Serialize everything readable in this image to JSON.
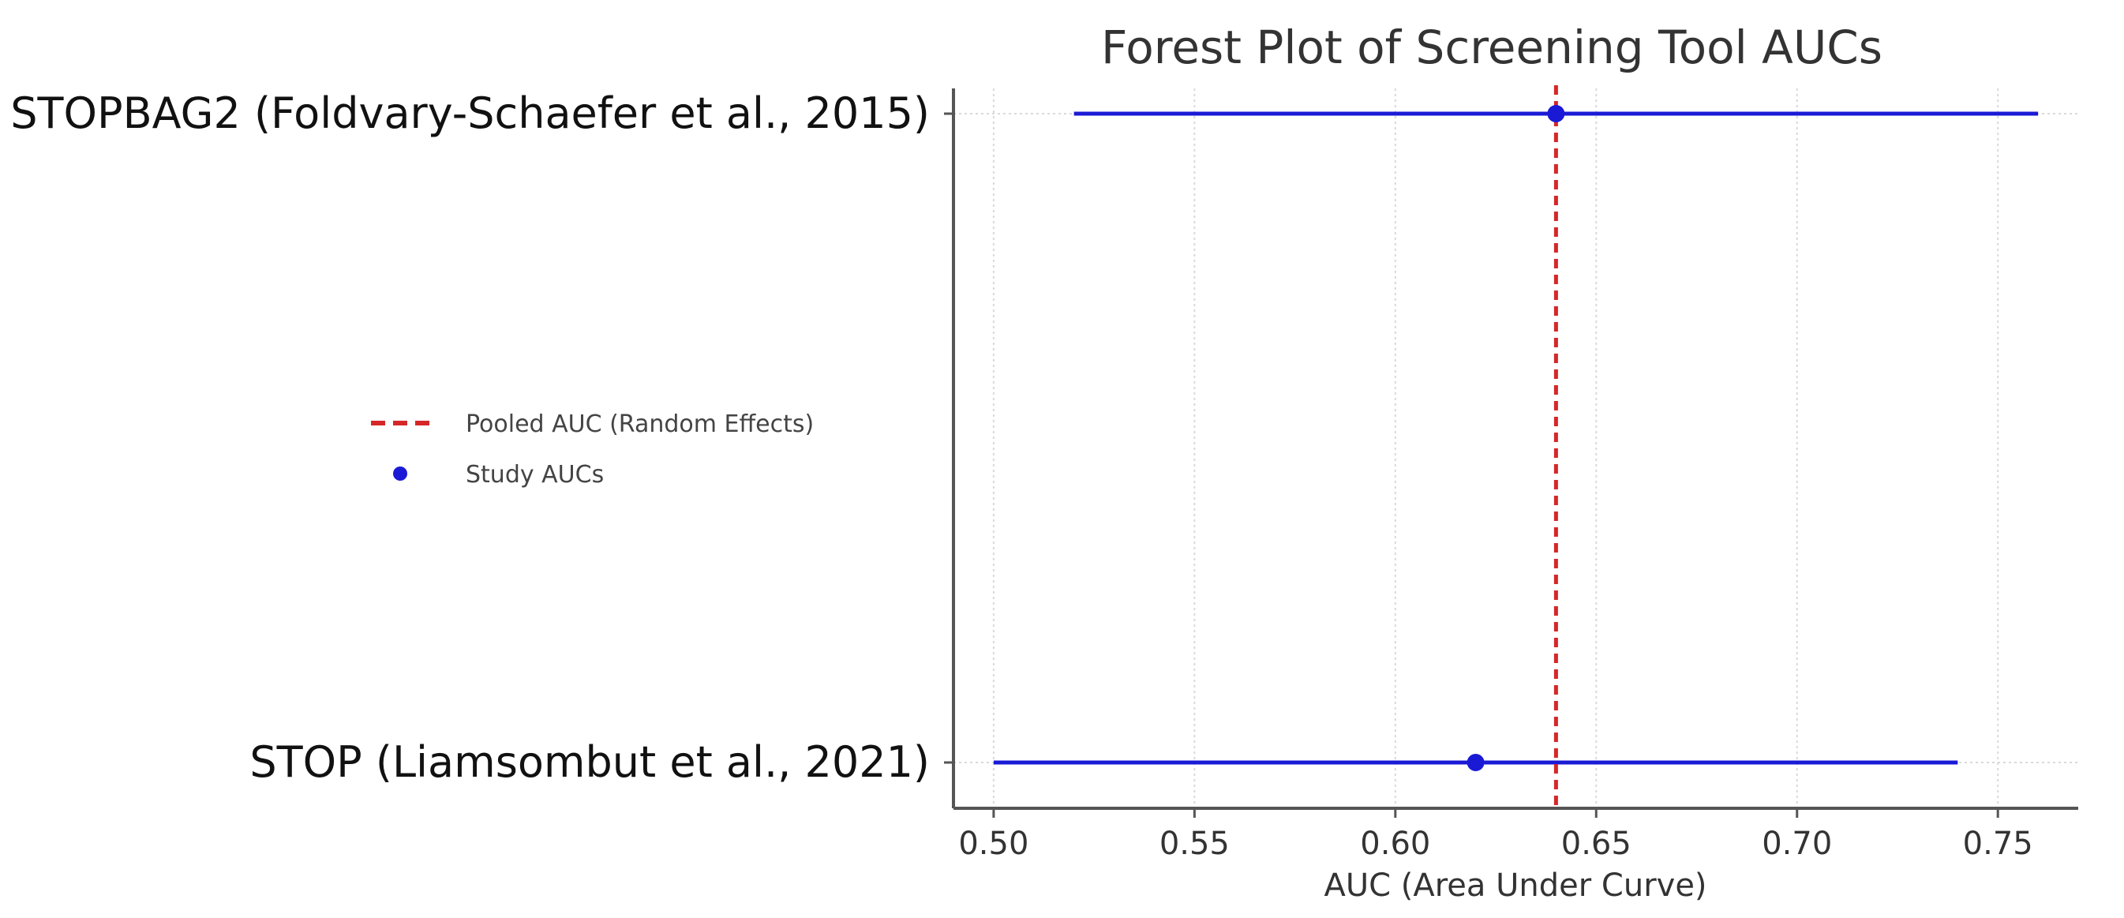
{
  "chart_data": {
    "type": "forest",
    "title": "Forest Plot of Screening Tool AUCs",
    "xlabel": "AUC (Area Under Curve)",
    "ylabel": "",
    "xlim": [
      0.49,
      0.77
    ],
    "xticks": [
      0.5,
      0.55,
      0.6,
      0.65,
      0.7,
      0.75
    ],
    "xtick_labels": [
      "0.50",
      "0.55",
      "0.60",
      "0.65",
      "0.70",
      "0.75"
    ],
    "grid": true,
    "legend_position": "left",
    "categories": [
      "STOPBAG2 (Foldvary-Schaefer et al., 2015)",
      "STOP (Liamsombut et al., 2021)"
    ],
    "series": [
      {
        "name": "Study AUCs",
        "color": "#1a1ad6",
        "points": [
          {
            "label": "STOPBAG2 (Foldvary-Schaefer et al., 2015)",
            "auc": 0.64,
            "ci_low": 0.52,
            "ci_high": 0.76
          },
          {
            "label": "STOP (Liamsombut et al., 2021)",
            "auc": 0.62,
            "ci_low": 0.5,
            "ci_high": 0.74
          }
        ]
      }
    ],
    "reference_line": {
      "name": "Pooled AUC (Random Effects)",
      "value": 0.64,
      "color": "#d62728",
      "style": "dashed"
    },
    "legend": [
      {
        "label": "Pooled AUC (Random Effects)",
        "kind": "dashed-line",
        "color": "#d62728"
      },
      {
        "label": "Study AUCs",
        "kind": "marker",
        "color": "#1a1ad6"
      }
    ]
  }
}
